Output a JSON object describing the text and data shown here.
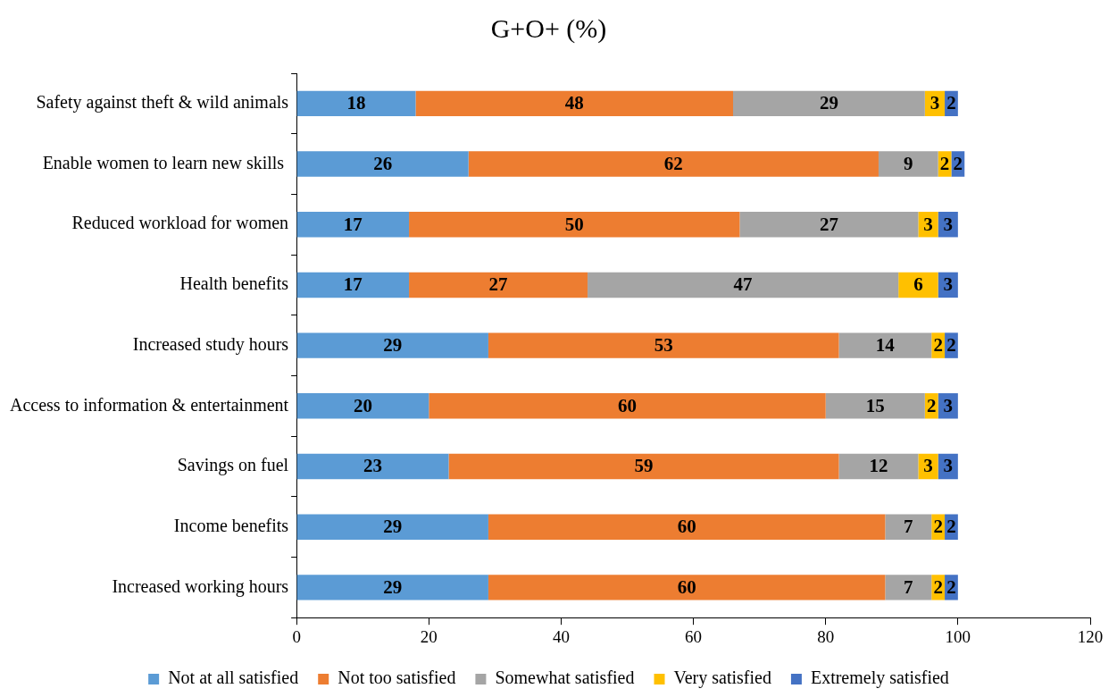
{
  "chart_data": {
    "type": "bar",
    "orientation": "horizontal",
    "stacked": true,
    "title": "G+O+ (%)",
    "categories": [
      "Safety against theft & wild animals",
      "Enable women to learn new skills ",
      "Reduced workload for women",
      "Health benefits",
      "Increased study hours",
      "Access to information & entertainment",
      "Savings on fuel",
      "Income benefits",
      "Increased working hours"
    ],
    "series": [
      {
        "name": "Not at all satisfied",
        "color": "#5b9bd5",
        "values": [
          18,
          26,
          17,
          17,
          29,
          20,
          23,
          29,
          29
        ]
      },
      {
        "name": "Not too satisfied",
        "color": "#ed7d31",
        "values": [
          48,
          62,
          50,
          27,
          53,
          60,
          59,
          60,
          60
        ]
      },
      {
        "name": "Somewhat satisfied",
        "color": "#a5a5a5",
        "values": [
          29,
          9,
          27,
          47,
          14,
          15,
          12,
          7,
          7
        ]
      },
      {
        "name": "Very satisfied",
        "color": "#ffc000",
        "values": [
          3,
          2,
          3,
          6,
          2,
          2,
          3,
          2,
          2
        ]
      },
      {
        "name": "Extremely satisfied",
        "color": "#4472c4",
        "values": [
          2,
          2,
          3,
          3,
          2,
          3,
          3,
          2,
          2
        ]
      }
    ],
    "xlim": [
      0,
      120
    ],
    "xticks": [
      0,
      20,
      40,
      60,
      80,
      100,
      120
    ],
    "data_labels": true,
    "grid": false,
    "legend": "bottom"
  }
}
